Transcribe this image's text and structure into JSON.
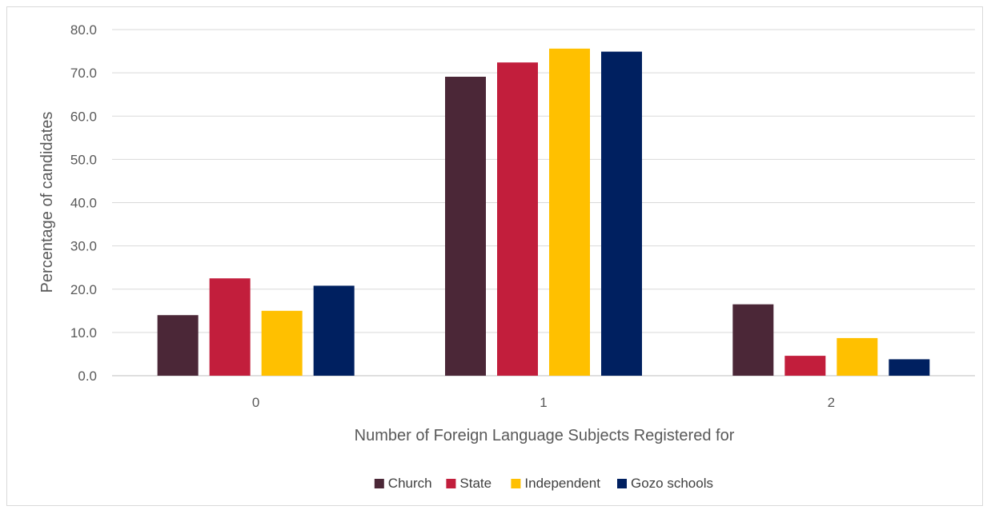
{
  "chart_data": {
    "type": "bar",
    "title": "",
    "xlabel": "Number of Foreign Language Subjects Registered for",
    "ylabel": "Percentage of candidates",
    "categories": [
      "0",
      "1",
      "2"
    ],
    "series": [
      {
        "name": "Church",
        "values": [
          14.0,
          69.1,
          16.5
        ],
        "color": "#4b2737"
      },
      {
        "name": "State",
        "values": [
          22.5,
          72.4,
          4.6
        ],
        "color": "#c21e3c"
      },
      {
        "name": "Independent",
        "values": [
          15.0,
          75.6,
          8.7
        ],
        "color": "#ffc000"
      },
      {
        "name": "Gozo schools",
        "values": [
          20.8,
          74.9,
          3.8
        ],
        "color": "#002060"
      }
    ],
    "ylim": [
      0,
      80
    ],
    "yticks": [
      "0.0",
      "10.0",
      "20.0",
      "30.0",
      "40.0",
      "50.0",
      "60.0",
      "70.0",
      "80.0"
    ],
    "grid": true,
    "legend_position": "bottom"
  }
}
